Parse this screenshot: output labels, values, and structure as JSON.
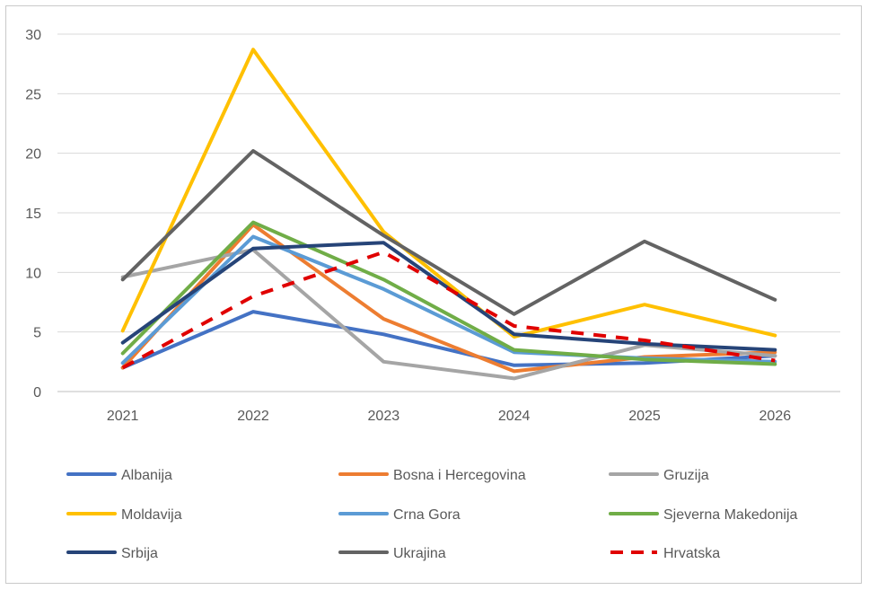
{
  "chart_data": {
    "type": "line",
    "title": "",
    "xlabel": "",
    "ylabel": "",
    "categories": [
      "2021",
      "2022",
      "2023",
      "2024",
      "2025",
      "2026"
    ],
    "ylim": [
      0,
      30
    ],
    "yticks": [
      0,
      5,
      10,
      15,
      20,
      25,
      30
    ],
    "grid": true,
    "legend_position": "bottom",
    "series": [
      {
        "name": "Albanija",
        "color": "#4472C4",
        "dash": false,
        "values": [
          2.0,
          6.7,
          4.8,
          2.2,
          2.4,
          3.0
        ]
      },
      {
        "name": "Bosna i Hercegovina",
        "color": "#ED7D31",
        "dash": false,
        "values": [
          2.0,
          14.0,
          6.1,
          1.7,
          2.9,
          3.3
        ]
      },
      {
        "name": "Gruzija",
        "color": "#A5A5A5",
        "dash": false,
        "values": [
          9.6,
          11.9,
          2.5,
          1.1,
          3.9,
          3.0
        ]
      },
      {
        "name": "Moldavija",
        "color": "#FFC000",
        "dash": false,
        "values": [
          5.1,
          28.7,
          13.4,
          4.6,
          7.3,
          4.7
        ]
      },
      {
        "name": "Crna Gora",
        "color": "#5B9BD5",
        "dash": false,
        "values": [
          2.4,
          13.0,
          8.6,
          3.3,
          2.8,
          2.5
        ]
      },
      {
        "name": "Sjeverna Makedonija",
        "color": "#70AD47",
        "dash": false,
        "values": [
          3.2,
          14.2,
          9.4,
          3.5,
          2.7,
          2.3
        ]
      },
      {
        "name": "Srbija",
        "color": "#264478",
        "dash": false,
        "values": [
          4.1,
          12.0,
          12.5,
          4.8,
          4.0,
          3.5
        ]
      },
      {
        "name": "Ukrajina",
        "color": "#636363",
        "dash": false,
        "values": [
          9.4,
          20.2,
          13.1,
          6.5,
          12.6,
          7.7
        ]
      },
      {
        "name": "Hrvatska",
        "color": "#E00000",
        "dash": true,
        "values": [
          2.0,
          8.0,
          11.7,
          5.5,
          4.3,
          2.6
        ]
      }
    ]
  }
}
